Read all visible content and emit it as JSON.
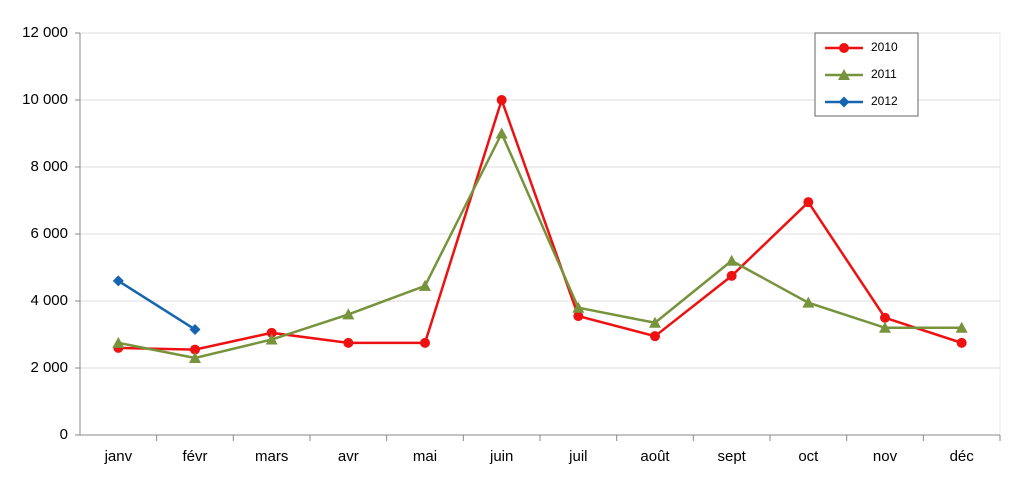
{
  "chart_data": {
    "type": "line",
    "categories": [
      "janv",
      "févr",
      "mars",
      "avr",
      "mai",
      "juin",
      "juil",
      "août",
      "sept",
      "oct",
      "nov",
      "déc"
    ],
    "series": [
      {
        "name": "2010",
        "color": "#ee1111",
        "marker": "circle",
        "values": [
          2600,
          2550,
          3050,
          2750,
          2750,
          10000,
          3550,
          2950,
          4750,
          6950,
          3500,
          2750
        ]
      },
      {
        "name": "2011",
        "color": "#77933c",
        "marker": "triangle",
        "values": [
          2750,
          2300,
          2850,
          3600,
          4450,
          9000,
          3800,
          3350,
          5200,
          3950,
          3200,
          3200
        ]
      },
      {
        "name": "2012",
        "color": "#1565b0",
        "marker": "diamond",
        "values": [
          4600,
          3150,
          null,
          null,
          null,
          null,
          null,
          null,
          null,
          null,
          null,
          null
        ]
      }
    ],
    "ylim": [
      0,
      12000
    ],
    "yticks": [
      0,
      {
        "value": 2000,
        "label": "2 000"
      },
      {
        "value": 4000,
        "label": "4 000"
      },
      {
        "value": 6000,
        "label": "6 000"
      },
      {
        "value": 8000,
        "label": "8 000"
      },
      {
        "value": 10000,
        "label": "10 000"
      },
      {
        "value": 12000,
        "label": "12 000"
      }
    ],
    "grid": true,
    "legend": "upper right"
  }
}
